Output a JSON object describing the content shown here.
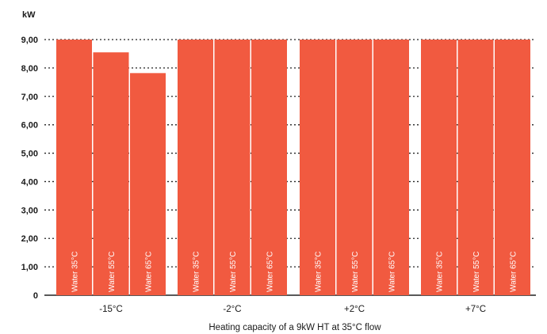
{
  "chart_data": {
    "type": "bar",
    "unit_label": "kW",
    "caption": "Heating capacity of a 9kW HT at 35°C flow",
    "groups": [
      "-15°C",
      "-2°C",
      "+2°C",
      "+7°C"
    ],
    "bar_labels": [
      "Water 35°C",
      "Water 55°C",
      "Water 65°C"
    ],
    "values": [
      [
        9.0,
        8.55,
        7.82
      ],
      [
        9.0,
        9.0,
        9.0
      ],
      [
        9.0,
        9.0,
        9.0
      ],
      [
        9.0,
        9.0,
        9.0
      ]
    ],
    "y_ticks": [
      "0",
      "1,00",
      "2,00",
      "3,00",
      "4,00",
      "5,00",
      "6,00",
      "7,00",
      "8,00",
      "9,00"
    ],
    "ylim": [
      0,
      9
    ],
    "grid": true,
    "colors": {
      "bar": "#f15a40",
      "grid": "#222222",
      "text": "#1a1a1a",
      "bar_text": "#ffffff"
    }
  }
}
